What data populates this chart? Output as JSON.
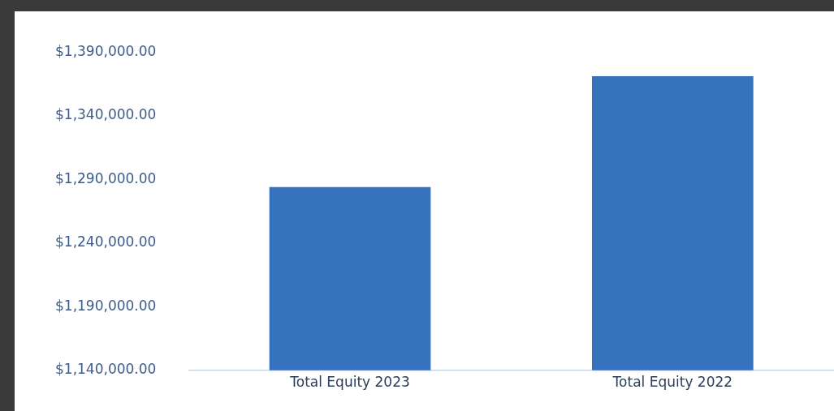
{
  "chart_data": {
    "type": "bar",
    "categories": [
      "Total Equity 2023",
      "Total Equity 2022"
    ],
    "values": [
      1284000,
      1371000
    ],
    "color": "#3672be",
    "ylim": [
      1140000,
      1390000
    ],
    "yticks": [
      {
        "value": 1140000,
        "label": "$1,140,000.00"
      },
      {
        "value": 1190000,
        "label": "$1,190,000.00"
      },
      {
        "value": 1240000,
        "label": "$1,240,000.00"
      },
      {
        "value": 1290000,
        "label": "$1,290,000.00"
      },
      {
        "value": 1340000,
        "label": "$1,340,000.00"
      },
      {
        "value": 1390000,
        "label": "$1,390,000.00"
      }
    ],
    "grid": false,
    "legend": false
  }
}
